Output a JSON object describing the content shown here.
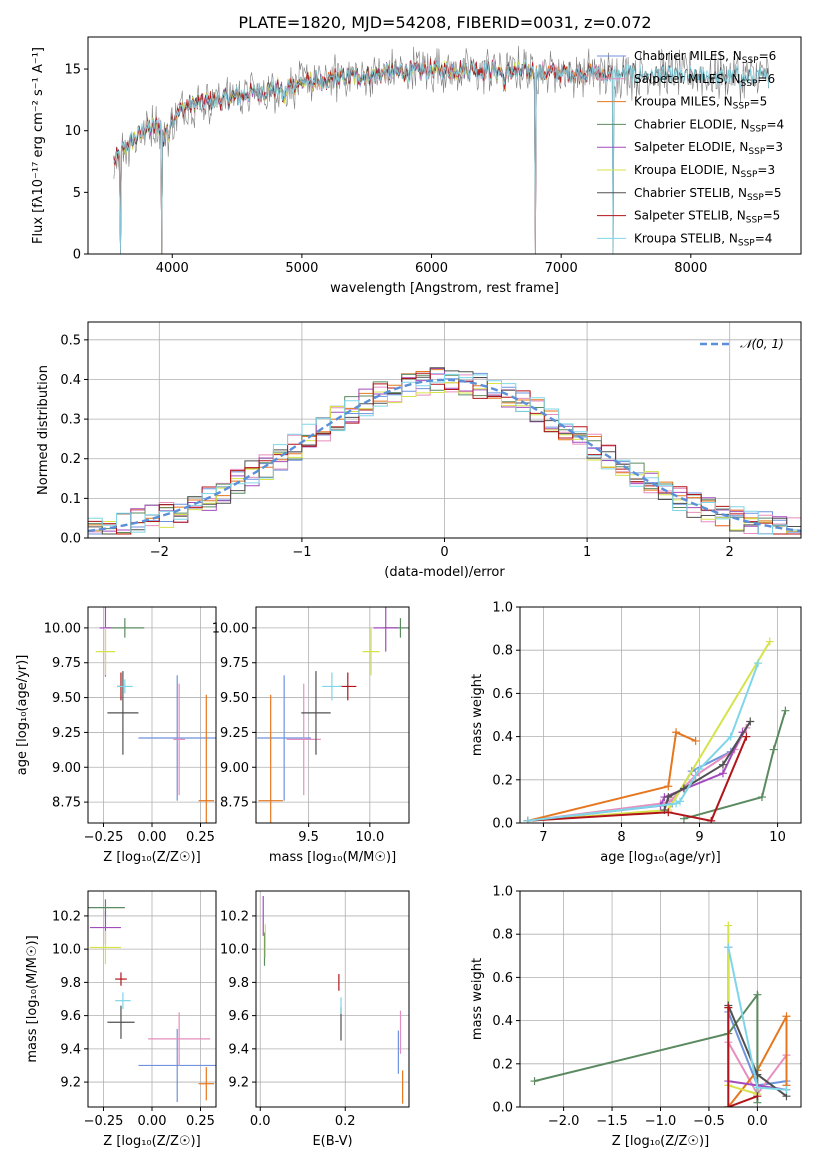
{
  "title": "PLATE=1820, MJD=54208, FIBERID=0031, z=0.072",
  "colors": {
    "Chabrier MILES": "#6f93dd",
    "Salpeter MILES": "#e68ebf",
    "Kroupa MILES": "#e5771e",
    "Chabrier ELODIE": "#5b8a60",
    "Salpeter ELODIE": "#a44bbd",
    "Kroupa ELODIE": "#d6e34a",
    "Chabrier STELIB": "#505050",
    "Salpeter STELIB": "#b11419",
    "Kroupa STELIB": "#7fd6e8",
    "data": "#7f7f7f",
    "normal_curve": "#5b8fd8"
  },
  "chart_data": [
    {
      "id": "spectrum",
      "type": "line",
      "title": "PLATE=1820, MJD=54208, FIBERID=0031, z=0.072",
      "xlabel": "wavelength [Angstrom, rest frame]",
      "ylabel": "Flux [fλ10⁻¹⁷ erg cm⁻² s⁻¹ A⁻¹]",
      "xlim": [
        3350,
        8850
      ],
      "ylim": [
        0,
        17.6
      ],
      "xticks": [
        4000,
        5000,
        6000,
        7000,
        8000
      ],
      "yticks": [
        0,
        5,
        10,
        15
      ],
      "legend": [
        "Chabrier MILES, N_SSP=6",
        "Salpeter MILES, N_SSP=6",
        "Kroupa MILES, N_SSP=5",
        "Chabrier ELODIE, N_SSP=4",
        "Salpeter ELODIE, N_SSP=3",
        "Kroupa ELODIE, N_SSP=3",
        "Chabrier STELIB, N_SSP=5",
        "Salpeter STELIB, N_SSP=5",
        "Kroupa STELIB, N_SSP=4"
      ],
      "legend_location": "right",
      "grid": false,
      "continuum": {
        "x": [
          3550,
          3650,
          3800,
          3950,
          4100,
          4400,
          4700,
          5000,
          5300,
          5600,
          5900,
          6200,
          6500,
          6800,
          7100,
          7400,
          7800,
          8200,
          8600
        ],
        "y": [
          7.5,
          8.8,
          10.2,
          10.5,
          12.0,
          12.6,
          13.2,
          13.9,
          14.3,
          14.6,
          14.9,
          15.0,
          14.9,
          14.8,
          14.7,
          14.6,
          14.5,
          14.4,
          14.3
        ]
      },
      "model_extent": {
        "Chabrier MILES": [
          3550,
          7400
        ],
        "Salpeter MILES": [
          3550,
          7400
        ],
        "Kroupa MILES": [
          3550,
          7400
        ],
        "Chabrier ELODIE": [
          3550,
          6800
        ],
        "Salpeter ELODIE": [
          3550,
          6800
        ],
        "Kroupa ELODIE": [
          3550,
          6800
        ],
        "Chabrier STELIB": [
          3550,
          8600
        ],
        "Salpeter STELIB": [
          3550,
          7400
        ],
        "Kroupa STELIB": [
          3550,
          8600
        ]
      },
      "dips": [
        [
          3600,
          0
        ],
        [
          3920,
          0
        ],
        [
          6800,
          0
        ],
        [
          7400,
          0
        ]
      ]
    },
    {
      "id": "residual_histogram",
      "type": "area",
      "xlabel": "(data-model)/error",
      "ylabel": "Normed distribution",
      "xlim": [
        -2.5,
        2.5
      ],
      "ylim": [
        0,
        0.545
      ],
      "xticks": [
        -2,
        -1,
        0,
        1,
        2
      ],
      "yticks": [
        0.0,
        0.1,
        0.2,
        0.3,
        0.4,
        0.5
      ],
      "grid": true,
      "bin_width": 0.1,
      "legend": [
        "𝒩(0,1)"
      ],
      "legend_location": "top-right",
      "annotation": "𝒩(0, 1)"
    },
    {
      "id": "age_vs_Z",
      "type": "scatter",
      "xlabel": "Z [log₁₀(Z/Z☉)]",
      "ylabel": "age  [log₁₀(age/yr)]",
      "xlim": [
        -0.33,
        0.33
      ],
      "ylim": [
        8.6,
        10.15
      ],
      "xticks": [
        -0.25,
        0.0,
        0.25
      ],
      "yticks": [
        8.75,
        9.0,
        9.25,
        9.5,
        9.75,
        10.0
      ],
      "grid": true,
      "points": [
        {
          "model": "Chabrier MILES",
          "x": 0.13,
          "xerr": 0.2,
          "y": 9.21,
          "yerr": 0.45
        },
        {
          "model": "Salpeter MILES",
          "x": 0.14,
          "xerr": 0.03,
          "y": 9.2,
          "yerr": 0.4
        },
        {
          "model": "Kroupa MILES",
          "x": 0.28,
          "xerr": 0.04,
          "y": 8.76,
          "yerr": 0.76
        },
        {
          "model": "Chabrier ELODIE",
          "x": -0.14,
          "xerr": 0.1,
          "y": 10.0,
          "yerr": 0.07
        },
        {
          "model": "Salpeter ELODIE",
          "x": -0.24,
          "xerr": 0.03,
          "y": 10.0,
          "yerr": 0.35
        },
        {
          "model": "Kroupa ELODIE",
          "x": -0.24,
          "xerr": 0.05,
          "y": 9.83,
          "yerr": 0.17
        },
        {
          "model": "Chabrier STELIB",
          "x": -0.15,
          "xerr": 0.08,
          "y": 9.39,
          "yerr": 0.3
        },
        {
          "model": "Salpeter STELIB",
          "x": -0.16,
          "xerr": 0.02,
          "y": 9.58,
          "yerr": 0.1
        },
        {
          "model": "Kroupa STELIB",
          "x": -0.14,
          "xerr": 0.04,
          "y": 9.58,
          "yerr": 0.05
        }
      ]
    },
    {
      "id": "age_vs_mass",
      "type": "scatter",
      "xlabel": "mass [log₁₀(M/M☉)]",
      "ylabel": "",
      "xlim": [
        9.07,
        10.32
      ],
      "ylim": [
        8.6,
        10.15
      ],
      "xticks": [
        9.5,
        10.0
      ],
      "yticks": [
        8.75,
        9.0,
        9.25,
        9.5,
        9.75,
        10.0
      ],
      "grid": true,
      "points": [
        {
          "model": "Chabrier MILES",
          "x": 9.3,
          "xerr": 0.22,
          "y": 9.21,
          "yerr": 0.45
        },
        {
          "model": "Salpeter MILES",
          "x": 9.46,
          "xerr": 0.14,
          "y": 9.2,
          "yerr": 0.4
        },
        {
          "model": "Kroupa MILES",
          "x": 9.19,
          "xerr": 0.1,
          "y": 8.76,
          "yerr": 0.76
        },
        {
          "model": "Chabrier ELODIE",
          "x": 10.25,
          "xerr": 0.14,
          "y": 10.0,
          "yerr": 0.07
        },
        {
          "model": "Salpeter ELODIE",
          "x": 10.13,
          "xerr": 0.1,
          "y": 10.0,
          "yerr": 0.17
        },
        {
          "model": "Kroupa ELODIE",
          "x": 10.01,
          "xerr": 0.07,
          "y": 9.83,
          "yerr": 0.17
        },
        {
          "model": "Chabrier STELIB",
          "x": 9.56,
          "xerr": 0.12,
          "y": 9.39,
          "yerr": 0.3
        },
        {
          "model": "Salpeter STELIB",
          "x": 9.82,
          "xerr": 0.07,
          "y": 9.58,
          "yerr": 0.1
        },
        {
          "model": "Kroupa STELIB",
          "x": 9.69,
          "xerr": 0.08,
          "y": 9.58,
          "yerr": 0.1
        }
      ]
    },
    {
      "id": "mass_weight_vs_age",
      "type": "line",
      "xlabel": "age  [log₁₀(age/yr)]",
      "ylabel": "mass weight",
      "xlim": [
        6.7,
        10.3
      ],
      "ylim": [
        0.0,
        1.0
      ],
      "xticks": [
        7,
        8,
        9,
        10
      ],
      "yticks": [
        0.0,
        0.2,
        0.4,
        0.6,
        0.8,
        1.0
      ],
      "grid": true,
      "series": [
        {
          "name": "Chabrier MILES",
          "x": [
            6.8,
            8.5,
            8.65,
            8.9,
            9.4,
            9.6
          ],
          "y": [
            0.01,
            0.08,
            0.09,
            0.24,
            0.33,
            0.44
          ]
        },
        {
          "name": "Salpeter MILES",
          "x": [
            6.8,
            8.5,
            8.62,
            8.95,
            9.45,
            9.6
          ],
          "y": [
            0.01,
            0.09,
            0.1,
            0.22,
            0.34,
            0.44
          ]
        },
        {
          "name": "Kroupa MILES",
          "x": [
            6.8,
            8.6,
            8.7,
            8.95
          ],
          "y": [
            0.01,
            0.17,
            0.42,
            0.38
          ]
        },
        {
          "name": "Chabrier ELODIE",
          "x": [
            8.8,
            9.8,
            9.95,
            10.1
          ],
          "y": [
            0.02,
            0.12,
            0.34,
            0.52
          ]
        },
        {
          "name": "Salpeter ELODIE",
          "x": [
            8.5,
            8.55,
            9.3,
            9.55
          ],
          "y": [
            0.08,
            0.12,
            0.23,
            0.42
          ]
        },
        {
          "name": "Kroupa ELODIE",
          "x": [
            6.8,
            8.6,
            9.9
          ],
          "y": [
            0.01,
            0.06,
            0.84
          ]
        },
        {
          "name": "Chabrier STELIB",
          "x": [
            8.55,
            8.6,
            8.8,
            9.3,
            9.65
          ],
          "y": [
            0.06,
            0.12,
            0.16,
            0.27,
            0.47
          ]
        },
        {
          "name": "Salpeter STELIB",
          "x": [
            6.8,
            8.6,
            9.15,
            9.6
          ],
          "y": [
            0.01,
            0.05,
            0.01,
            0.4
          ]
        },
        {
          "name": "Kroupa STELIB",
          "x": [
            6.8,
            8.7,
            8.75,
            9.0,
            9.4,
            9.75
          ],
          "y": [
            0.01,
            0.09,
            0.1,
            0.25,
            0.4,
            0.74
          ]
        }
      ]
    },
    {
      "id": "mass_vs_Z",
      "type": "scatter",
      "xlabel": "Z [log₁₀(Z/Z☉)]",
      "ylabel": "mass [log₁₀(M/M☉)]",
      "xlim": [
        -0.33,
        0.33
      ],
      "ylim": [
        9.05,
        10.35
      ],
      "xticks": [
        -0.25,
        0.0,
        0.25
      ],
      "yticks": [
        9.2,
        9.4,
        9.6,
        9.8,
        10.0,
        10.2
      ],
      "grid": true,
      "points": [
        {
          "model": "Chabrier MILES",
          "x": 0.13,
          "xerr": 0.2,
          "y": 9.3,
          "yerr": 0.22
        },
        {
          "model": "Salpeter MILES",
          "x": 0.14,
          "xerr": 0.16,
          "y": 9.46,
          "yerr": 0.16
        },
        {
          "model": "Kroupa MILES",
          "x": 0.28,
          "xerr": 0.04,
          "y": 9.19,
          "yerr": 0.1
        },
        {
          "model": "Chabrier ELODIE",
          "x": -0.24,
          "xerr": 0.1,
          "y": 10.25,
          "yerr": 0.05
        },
        {
          "model": "Salpeter ELODIE",
          "x": -0.24,
          "xerr": 0.08,
          "y": 10.13,
          "yerr": 0.1
        },
        {
          "model": "Kroupa ELODIE",
          "x": -0.24,
          "xerr": 0.08,
          "y": 10.01,
          "yerr": 0.1
        },
        {
          "model": "Chabrier STELIB",
          "x": -0.16,
          "xerr": 0.07,
          "y": 9.56,
          "yerr": 0.1
        },
        {
          "model": "Salpeter STELIB",
          "x": -0.16,
          "xerr": 0.03,
          "y": 9.82,
          "yerr": 0.04
        },
        {
          "model": "Kroupa STELIB",
          "x": -0.15,
          "xerr": 0.04,
          "y": 9.69,
          "yerr": 0.05
        }
      ]
    },
    {
      "id": "mass_vs_EBV",
      "type": "scatter",
      "xlabel": "E(B-V)",
      "ylabel": "",
      "xlim": [
        -0.01,
        0.35
      ],
      "ylim": [
        9.05,
        10.35
      ],
      "xticks": [
        0.0,
        0.2
      ],
      "yticks": [
        9.2,
        9.4,
        9.6,
        9.8,
        10.0,
        10.2
      ],
      "grid": true,
      "points": [
        {
          "model": "Chabrier MILES",
          "x": 0.325,
          "xerr": 0.0,
          "y": 9.38,
          "yerr": 0.13
        },
        {
          "model": "Salpeter MILES",
          "x": 0.33,
          "xerr": 0.0,
          "y": 9.5,
          "yerr": 0.13
        },
        {
          "model": "Kroupa MILES",
          "x": 0.335,
          "xerr": 0.0,
          "y": 9.17,
          "yerr": 0.1
        },
        {
          "model": "Chabrier ELODIE",
          "x": 0.01,
          "xerr": 0.0,
          "y": 10.0,
          "yerr": 0.1
        },
        {
          "model": "Salpeter ELODIE",
          "x": 0.007,
          "xerr": 0.0,
          "y": 10.2,
          "yerr": 0.12
        },
        {
          "model": "Kroupa ELODIE",
          "x": 0.012,
          "xerr": 0.0,
          "y": 10.05,
          "yerr": 0.1
        },
        {
          "model": "Chabrier STELIB",
          "x": 0.19,
          "xerr": 0.0,
          "y": 9.55,
          "yerr": 0.1
        },
        {
          "model": "Salpeter STELIB",
          "x": 0.185,
          "xerr": 0.0,
          "y": 9.8,
          "yerr": 0.05
        },
        {
          "model": "Kroupa STELIB",
          "x": 0.19,
          "xerr": 0.0,
          "y": 9.66,
          "yerr": 0.05
        }
      ]
    },
    {
      "id": "mass_weight_vs_Z",
      "type": "line",
      "xlabel": "Z [log₁₀(Z/Z☉)]",
      "ylabel": "mass weight",
      "xlim": [
        -2.45,
        0.45
      ],
      "ylim": [
        0.0,
        1.0
      ],
      "xticks": [
        -2.0,
        -1.5,
        -1.0,
        -0.5,
        0.0
      ],
      "yticks": [
        0.0,
        0.2,
        0.4,
        0.6,
        0.8,
        1.0
      ],
      "grid": true,
      "series": [
        {
          "name": "Chabrier MILES",
          "x": [
            -0.3,
            0.0,
            0.3
          ],
          "y": [
            0.44,
            0.1,
            0.12
          ]
        },
        {
          "name": "Salpeter MILES",
          "x": [
            -0.3,
            0.0,
            0.3
          ],
          "y": [
            0.3,
            0.06,
            0.24
          ]
        },
        {
          "name": "Kroupa MILES",
          "x": [
            -0.3,
            0.0,
            0.3,
            0.3
          ],
          "y": [
            0.0,
            0.17,
            0.42,
            0.1
          ]
        },
        {
          "name": "Chabrier ELODIE",
          "x": [
            -2.3,
            -0.3,
            0.0,
            0.0
          ],
          "y": [
            0.12,
            0.34,
            0.52,
            0.02
          ]
        },
        {
          "name": "Salpeter ELODIE",
          "x": [
            -0.3,
            -0.3,
            0.3
          ],
          "y": [
            0.74,
            0.12,
            0.08
          ]
        },
        {
          "name": "Kroupa ELODIE",
          "x": [
            -0.3,
            -0.3,
            0.0
          ],
          "y": [
            0.84,
            0.1,
            0.06
          ]
        },
        {
          "name": "Chabrier STELIB",
          "x": [
            -0.3,
            0.0,
            0.3
          ],
          "y": [
            0.47,
            0.15,
            0.05
          ]
        },
        {
          "name": "Salpeter STELIB",
          "x": [
            -0.3,
            -0.3,
            0.0
          ],
          "y": [
            0.46,
            0.0,
            0.05
          ]
        },
        {
          "name": "Kroupa STELIB",
          "x": [
            -0.3,
            0.0,
            0.3
          ],
          "y": [
            0.74,
            0.09,
            0.08
          ]
        }
      ]
    }
  ]
}
